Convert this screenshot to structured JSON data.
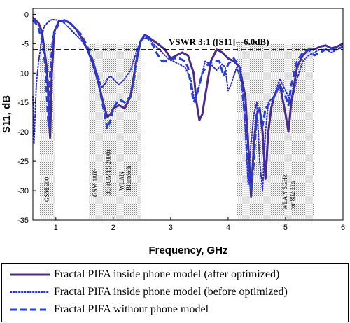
{
  "chart_data": {
    "type": "line",
    "xlabel": "Frequency, GHz",
    "ylabel": "S11, dB",
    "xlim": [
      0.6,
      6
    ],
    "ylim": [
      -35,
      1
    ],
    "x_ticks": [
      "1",
      "2",
      "3",
      "4",
      "5",
      "6"
    ],
    "y_ticks": [
      "0",
      "-5",
      "-10",
      "-15",
      "-20",
      "-25",
      "-30",
      "-35"
    ],
    "grid": false,
    "reference_line": {
      "value": -6.0,
      "label": "VSWR 3:1 ([S11]=-6.0dB)"
    },
    "bands": [
      {
        "x_start": 0.72,
        "x_end": 0.98,
        "label": "GSM 900"
      },
      {
        "x_start": 1.58,
        "x_end": 2.48,
        "label": "GSM 1800 | 3G (UMTS 2000) | WLAN Bluetooth"
      },
      {
        "x_start": 4.15,
        "x_end": 5.5,
        "label": "WLAN 5GHz for 802.11a"
      }
    ],
    "series": [
      {
        "name": "Fractal PIFA inside phone model (after optimized)",
        "color": "#4b2a8c",
        "style": "solid",
        "x": [
          0.6,
          0.7,
          0.76,
          0.8,
          0.84,
          0.86,
          0.88,
          0.9,
          0.93,
          0.97,
          1.05,
          1.15,
          1.25,
          1.35,
          1.45,
          1.55,
          1.65,
          1.75,
          1.85,
          1.9,
          1.95,
          2.0,
          2.1,
          2.2,
          2.3,
          2.4,
          2.48,
          2.55,
          2.6,
          2.7,
          2.8,
          2.9,
          3.0,
          3.1,
          3.2,
          3.3,
          3.4,
          3.45,
          3.5,
          3.55,
          3.6,
          3.7,
          3.8,
          3.9,
          4.0,
          4.1,
          4.2,
          4.3,
          4.35,
          4.4,
          4.45,
          4.5,
          4.55,
          4.6,
          4.65,
          4.7,
          4.75,
          4.8,
          4.9,
          5.0,
          5.05,
          5.1,
          5.2,
          5.3,
          5.4,
          5.5,
          5.6,
          5.7,
          5.8,
          5.9,
          6.0
        ],
        "y": [
          -0.5,
          -1.5,
          -3.0,
          -6.0,
          -9.0,
          -12.0,
          -17.0,
          -21.0,
          -10.0,
          -3.0,
          -1.2,
          -1.0,
          -1.5,
          -2.5,
          -4.0,
          -6.0,
          -8.5,
          -12.0,
          -16.0,
          -17.5,
          -17.0,
          -16.0,
          -15.5,
          -16.0,
          -14.0,
          -8.0,
          -4.5,
          -3.5,
          -3.8,
          -4.5,
          -5.2,
          -6.0,
          -7.5,
          -7.0,
          -6.5,
          -7.0,
          -10.0,
          -15.0,
          -18.0,
          -17.0,
          -14.0,
          -8.0,
          -6.0,
          -6.5,
          -7.5,
          -8.0,
          -9.0,
          -14.0,
          -22.0,
          -31.0,
          -22.0,
          -17.0,
          -16.0,
          -20.0,
          -28.0,
          -20.0,
          -16.0,
          -14.0,
          -12.0,
          -17.0,
          -20.0,
          -15.0,
          -9.0,
          -7.0,
          -6.0,
          -6.0,
          -5.5,
          -5.3,
          -5.8,
          -5.5,
          -5.0
        ]
      },
      {
        "name": "Fractal PIFA inside phone model (before optimized)",
        "color": "#2b2bd6",
        "style": "dotted",
        "x": [
          0.6,
          0.62,
          0.66,
          0.7,
          0.73,
          0.76,
          0.8,
          0.85,
          0.9,
          0.95,
          1.05,
          1.15,
          1.25,
          1.35,
          1.45,
          1.55,
          1.65,
          1.75,
          1.8,
          1.85,
          1.9,
          1.95,
          2.0,
          2.05,
          2.1,
          2.2,
          2.3,
          2.4,
          2.48,
          2.55,
          2.65,
          2.75,
          2.85,
          2.95,
          3.05,
          3.15,
          3.25,
          3.35,
          3.42,
          3.5,
          3.55,
          3.6,
          3.7,
          3.8,
          3.9,
          3.95,
          4.0,
          4.05,
          4.15,
          4.25,
          4.3,
          4.35,
          4.4,
          4.45,
          4.5,
          4.55,
          4.6,
          4.65,
          4.7,
          4.8,
          4.9,
          5.0,
          5.1,
          5.2,
          5.3,
          5.4,
          5.5,
          5.6,
          5.7,
          5.8,
          5.9,
          6.0
        ],
        "y": [
          -14.0,
          -22.0,
          -12.0,
          -8.0,
          -6.0,
          -3.5,
          -2.0,
          -1.5,
          -1.0,
          -0.9,
          -1.0,
          -1.5,
          -2.5,
          -3.5,
          -4.5,
          -6.0,
          -8.0,
          -11.0,
          -12.5,
          -12.0,
          -11.0,
          -10.5,
          -11.0,
          -11.5,
          -12.0,
          -11.0,
          -9.5,
          -6.5,
          -4.5,
          -4.0,
          -4.5,
          -5.5,
          -6.5,
          -7.5,
          -8.0,
          -8.5,
          -9.0,
          -11.0,
          -15.0,
          -12.0,
          -10.0,
          -8.0,
          -8.5,
          -9.5,
          -8.5,
          -9.0,
          -13.0,
          -12.0,
          -9.0,
          -12.0,
          -20.0,
          -29.0,
          -22.0,
          -17.0,
          -15.0,
          -25.0,
          -30.0,
          -20.0,
          -15.0,
          -14.0,
          -11.0,
          -13.0,
          -15.0,
          -11.0,
          -8.0,
          -7.0,
          -6.5,
          -6.0,
          -6.0,
          -6.5,
          -6.0,
          -5.5
        ]
      },
      {
        "name": "Fractal PIFA without phone model",
        "color": "#2040e0",
        "style": "dashed",
        "x": [
          0.6,
          0.65,
          0.7,
          0.75,
          0.78,
          0.82,
          0.85,
          0.87,
          0.9,
          0.95,
          1.05,
          1.15,
          1.25,
          1.35,
          1.45,
          1.55,
          1.65,
          1.75,
          1.85,
          1.9,
          1.95,
          2.0,
          2.1,
          2.2,
          2.3,
          2.38,
          2.45,
          2.55,
          2.65,
          2.75,
          2.85,
          2.95,
          3.05,
          3.15,
          3.25,
          3.3,
          3.35,
          3.4,
          3.45,
          3.55,
          3.65,
          3.75,
          3.85,
          3.92,
          4.0,
          4.1,
          4.2,
          4.3,
          4.35,
          4.4,
          4.45,
          4.5,
          4.55,
          4.6,
          4.65,
          4.7,
          4.8,
          4.9,
          5.0,
          5.05,
          5.1,
          5.2,
          5.3,
          5.4,
          5.5,
          5.6,
          5.7,
          5.8,
          5.9,
          6.0
        ],
        "y": [
          -1.0,
          -1.5,
          -2.5,
          -4.0,
          -5.5,
          -9.0,
          -15.0,
          -19.0,
          -10.0,
          -4.0,
          -1.5,
          -1.0,
          -1.5,
          -2.5,
          -3.5,
          -5.5,
          -8.0,
          -12.0,
          -17.0,
          -19.5,
          -18.0,
          -16.0,
          -14.5,
          -15.0,
          -14.0,
          -10.0,
          -5.0,
          -3.5,
          -4.5,
          -6.5,
          -8.0,
          -8.0,
          -7.5,
          -7.5,
          -8.0,
          -9.0,
          -12.0,
          -15.0,
          -14.0,
          -10.0,
          -8.5,
          -8.0,
          -8.0,
          -10.5,
          -8.5,
          -7.5,
          -9.0,
          -18.0,
          -26.0,
          -30.0,
          -25.0,
          -17.0,
          -16.0,
          -19.0,
          -16.0,
          -15.5,
          -14.0,
          -12.0,
          -14.0,
          -15.5,
          -12.0,
          -8.0,
          -6.5,
          -6.0,
          -7.0,
          -6.5,
          -6.0,
          -6.0,
          -6.0,
          -5.5
        ]
      }
    ]
  }
}
